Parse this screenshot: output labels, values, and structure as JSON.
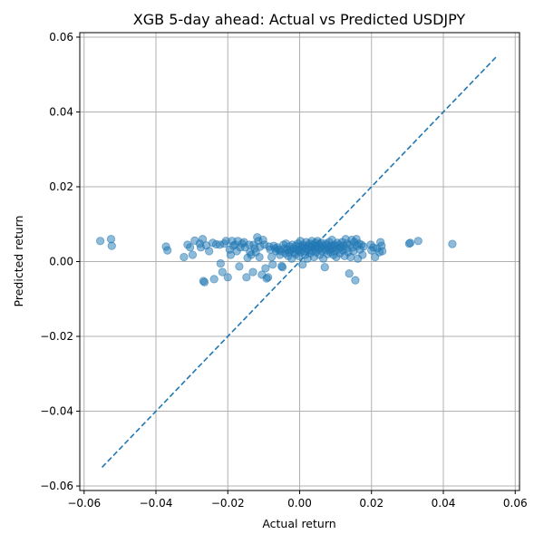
{
  "chart_data": {
    "type": "scatter",
    "title": "XGB 5-day ahead: Actual vs Predicted USDJPY",
    "xlabel": "Actual return",
    "ylabel": "Predicted return",
    "xlim": [
      -0.0612,
      0.0612
    ],
    "ylim": [
      -0.0612,
      0.0612
    ],
    "xticks": [
      -0.06,
      -0.04,
      -0.02,
      0.0,
      0.02,
      0.04,
      0.06
    ],
    "xtick_labels": [
      "−0.06",
      "−0.04",
      "−0.02",
      "0.00",
      "0.02",
      "0.04",
      "0.06"
    ],
    "yticks": [
      -0.06,
      -0.04,
      -0.02,
      0.0,
      0.02,
      0.04,
      0.06
    ],
    "ytick_labels": [
      "−0.06",
      "−0.04",
      "−0.02",
      "0.00",
      "0.02",
      "0.04",
      "0.06"
    ],
    "grid": true,
    "point_color": "#1f77b4",
    "line_color": "#1f77b4",
    "reference_line": {
      "x": [
        -0.055,
        0.055
      ],
      "y": [
        -0.055,
        0.055
      ],
      "style": "dashed"
    },
    "points": [
      [
        -0.0555,
        0.0055
      ],
      [
        -0.0525,
        0.006
      ],
      [
        -0.0523,
        0.0042
      ],
      [
        -0.0372,
        0.004
      ],
      [
        -0.0368,
        0.003
      ],
      [
        -0.0322,
        0.0012
      ],
      [
        -0.0312,
        0.0045
      ],
      [
        -0.0305,
        0.0038
      ],
      [
        -0.0298,
        0.0018
      ],
      [
        -0.0292,
        0.0056
      ],
      [
        -0.0278,
        0.0048
      ],
      [
        -0.0275,
        0.0038
      ],
      [
        -0.027,
        0.006
      ],
      [
        -0.0268,
        -0.0052
      ],
      [
        -0.0265,
        -0.0055
      ],
      [
        -0.026,
        0.0043
      ],
      [
        -0.0252,
        0.0028
      ],
      [
        -0.0242,
        0.005
      ],
      [
        -0.0238,
        -0.0047
      ],
      [
        -0.0232,
        0.0046
      ],
      [
        -0.0222,
        0.0045
      ],
      [
        -0.022,
        -0.0005
      ],
      [
        -0.0215,
        -0.0028
      ],
      [
        -0.021,
        0.0048
      ],
      [
        -0.0205,
        0.0055
      ],
      [
        -0.02,
        -0.0042
      ],
      [
        -0.0195,
        0.0032
      ],
      [
        -0.0192,
        0.0018
      ],
      [
        -0.0188,
        0.0055
      ],
      [
        -0.0185,
        0.0042
      ],
      [
        -0.018,
        0.0045
      ],
      [
        -0.0175,
        0.0028
      ],
      [
        -0.0172,
        0.0055
      ],
      [
        -0.0168,
        -0.0013
      ],
      [
        -0.0165,
        0.0038
      ],
      [
        -0.016,
        0.0048
      ],
      [
        -0.0155,
        0.0052
      ],
      [
        -0.0152,
        0.0038
      ],
      [
        -0.0148,
        -0.0042
      ],
      [
        -0.0145,
        0.001
      ],
      [
        -0.014,
        0.0045
      ],
      [
        -0.0138,
        0.0025
      ],
      [
        -0.0135,
        0.0018
      ],
      [
        -0.013,
        -0.0028
      ],
      [
        -0.0128,
        0.0045
      ],
      [
        -0.0125,
        0.0035
      ],
      [
        -0.0122,
        0.0025
      ],
      [
        -0.0118,
        0.0065
      ],
      [
        -0.0115,
        0.0055
      ],
      [
        -0.0112,
        0.0012
      ],
      [
        -0.011,
        0.004
      ],
      [
        -0.0105,
        -0.0035
      ],
      [
        -0.0102,
        0.0058
      ],
      [
        -0.0098,
        0.0045
      ],
      [
        -0.0095,
        -0.0018
      ],
      [
        -0.0092,
        -0.0045
      ],
      [
        -0.0088,
        -0.0042
      ],
      [
        -0.0085,
        0.004
      ],
      [
        -0.0082,
        0.0032
      ],
      [
        -0.0078,
        0.0012
      ],
      [
        -0.0075,
        -0.0008
      ],
      [
        -0.0072,
        0.0042
      ],
      [
        -0.0068,
        0.0035
      ],
      [
        -0.0065,
        0.0028
      ],
      [
        -0.0062,
        0.0038
      ],
      [
        -0.0058,
        0.0032
      ],
      [
        -0.0055,
        0.0018
      ],
      [
        -0.0052,
        0.0028
      ],
      [
        -0.005,
        -0.0012
      ],
      [
        -0.0048,
        -0.0015
      ],
      [
        -0.0045,
        0.0045
      ],
      [
        -0.0042,
        0.0035
      ],
      [
        -0.004,
        0.0022
      ],
      [
        -0.0038,
        0.0048
      ],
      [
        -0.0035,
        0.0032
      ],
      [
        -0.0032,
        0.0015
      ],
      [
        -0.003,
        0.0025
      ],
      [
        -0.0028,
        0.004
      ],
      [
        -0.0025,
        0.003
      ],
      [
        -0.0022,
        0.0008
      ],
      [
        -0.002,
        0.0045
      ],
      [
        -0.0018,
        0.0035
      ],
      [
        -0.0015,
        0.0025
      ],
      [
        -0.0012,
        0.002
      ],
      [
        -0.001,
        0.0042
      ],
      [
        -0.0008,
        0.0032
      ],
      [
        -0.0005,
        0.0048
      ],
      [
        -0.0003,
        0.0015
      ],
      [
        -0.0002,
        0.003
      ],
      [
        0.0,
        0.004
      ],
      [
        0.0002,
        0.0055
      ],
      [
        0.0004,
        0.0025
      ],
      [
        0.0006,
        0.0035
      ],
      [
        0.0008,
        -0.0008
      ],
      [
        0.001,
        0.0045
      ],
      [
        0.0012,
        0.0028
      ],
      [
        0.0014,
        0.004
      ],
      [
        0.0016,
        0.0018
      ],
      [
        0.0018,
        0.0052
      ],
      [
        0.002,
        0.0035
      ],
      [
        0.0022,
        0.0008
      ],
      [
        0.0024,
        0.0042
      ],
      [
        0.0026,
        0.003
      ],
      [
        0.0028,
        0.0048
      ],
      [
        0.003,
        0.0022
      ],
      [
        0.0032,
        0.0038
      ],
      [
        0.0034,
        0.0055
      ],
      [
        0.0036,
        0.0028
      ],
      [
        0.0038,
        0.0045
      ],
      [
        0.004,
        0.0012
      ],
      [
        0.0042,
        0.0035
      ],
      [
        0.0044,
        0.005
      ],
      [
        0.0046,
        0.0025
      ],
      [
        0.0048,
        0.004
      ],
      [
        0.005,
        0.0055
      ],
      [
        0.0052,
        0.0032
      ],
      [
        0.0054,
        0.0045
      ],
      [
        0.0056,
        0.0018
      ],
      [
        0.0058,
        0.0038
      ],
      [
        0.006,
        0.005
      ],
      [
        0.0062,
        0.0028
      ],
      [
        0.0064,
        0.0042
      ],
      [
        0.0066,
        0.0008
      ],
      [
        0.0068,
        0.0035
      ],
      [
        0.007,
        -0.0015
      ],
      [
        0.0072,
        0.0048
      ],
      [
        0.0074,
        0.003
      ],
      [
        0.0076,
        0.0045
      ],
      [
        0.0078,
        0.002
      ],
      [
        0.008,
        0.0038
      ],
      [
        0.0082,
        0.0052
      ],
      [
        0.0084,
        0.0032
      ],
      [
        0.0086,
        0.0025
      ],
      [
        0.0088,
        0.0042
      ],
      [
        0.009,
        0.0058
      ],
      [
        0.0092,
        0.0035
      ],
      [
        0.0094,
        0.0018
      ],
      [
        0.0096,
        0.0045
      ],
      [
        0.0098,
        0.0028
      ],
      [
        0.01,
        0.004
      ],
      [
        0.0102,
        0.0012
      ],
      [
        0.0105,
        0.005
      ],
      [
        0.0108,
        0.0032
      ],
      [
        0.011,
        0.0045
      ],
      [
        0.0112,
        0.0022
      ],
      [
        0.0115,
        0.0038
      ],
      [
        0.0118,
        0.0052
      ],
      [
        0.012,
        0.003
      ],
      [
        0.0122,
        0.0042
      ],
      [
        0.0125,
        0.0015
      ],
      [
        0.0128,
        0.006
      ],
      [
        0.013,
        0.0035
      ],
      [
        0.0132,
        0.0048
      ],
      [
        0.0135,
        0.0025
      ],
      [
        0.0138,
        -0.0032
      ],
      [
        0.014,
        0.0045
      ],
      [
        0.0142,
        0.0012
      ],
      [
        0.0145,
        0.0058
      ],
      [
        0.0148,
        0.0038
      ],
      [
        0.015,
        0.0028
      ],
      [
        0.0152,
        0.0052
      ],
      [
        0.0155,
        -0.005
      ],
      [
        0.0158,
        0.006
      ],
      [
        0.016,
        0.0042
      ],
      [
        0.0162,
        0.0008
      ],
      [
        0.0165,
        0.0048
      ],
      [
        0.0168,
        0.0032
      ],
      [
        0.0172,
        0.0045
      ],
      [
        0.0175,
        0.0018
      ],
      [
        0.0178,
        0.004
      ],
      [
        0.0198,
        0.0045
      ],
      [
        0.02,
        0.003
      ],
      [
        0.0205,
        0.0038
      ],
      [
        0.021,
        0.0012
      ],
      [
        0.0215,
        0.0035
      ],
      [
        0.0222,
        0.0025
      ],
      [
        0.0225,
        0.0052
      ],
      [
        0.0228,
        0.0042
      ],
      [
        0.023,
        0.0028
      ],
      [
        0.0305,
        0.0048
      ],
      [
        0.0308,
        0.005
      ],
      [
        0.033,
        0.0055
      ],
      [
        0.0425,
        0.0047
      ]
    ]
  }
}
